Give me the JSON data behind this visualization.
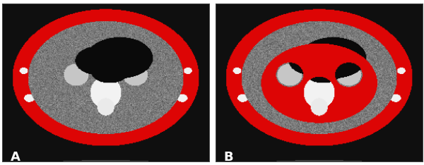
{
  "figure_width": 6.0,
  "figure_height": 2.34,
  "dpi": 100,
  "background_color": "#ffffff",
  "panel_A_label": "A",
  "panel_B_label": "B",
  "label_color": "#ffffff",
  "label_fontsize": 13,
  "label_fontweight": "bold"
}
